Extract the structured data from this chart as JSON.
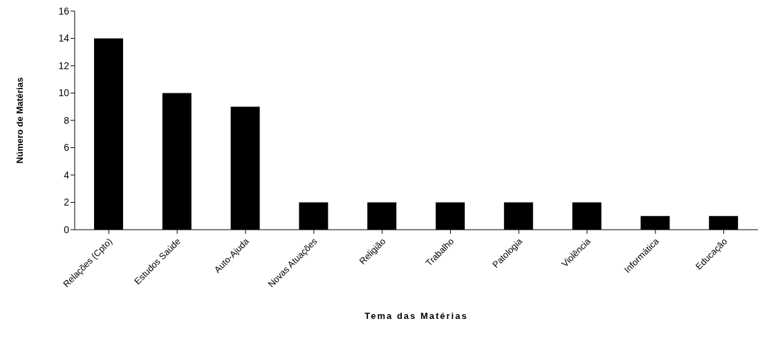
{
  "chart_data": {
    "type": "bar",
    "xlabel": "Tema das Matérias",
    "ylabel": "Número de Matérias",
    "categories": [
      "Relações (Cpto)",
      "Estudos Saúde",
      "Auto-Ajuda",
      "Novas Atuações",
      "Religião",
      "Trabalho",
      "Patologia",
      "Violência",
      "Informática",
      "Educação"
    ],
    "values": [
      14,
      10,
      9,
      2,
      2,
      2,
      2,
      2,
      1,
      1
    ],
    "color": "#000000",
    "ylim": [
      0,
      16
    ],
    "yticks": [
      0,
      2,
      4,
      6,
      8,
      10,
      12,
      14,
      16
    ],
    "grid": false,
    "legend": false
  }
}
